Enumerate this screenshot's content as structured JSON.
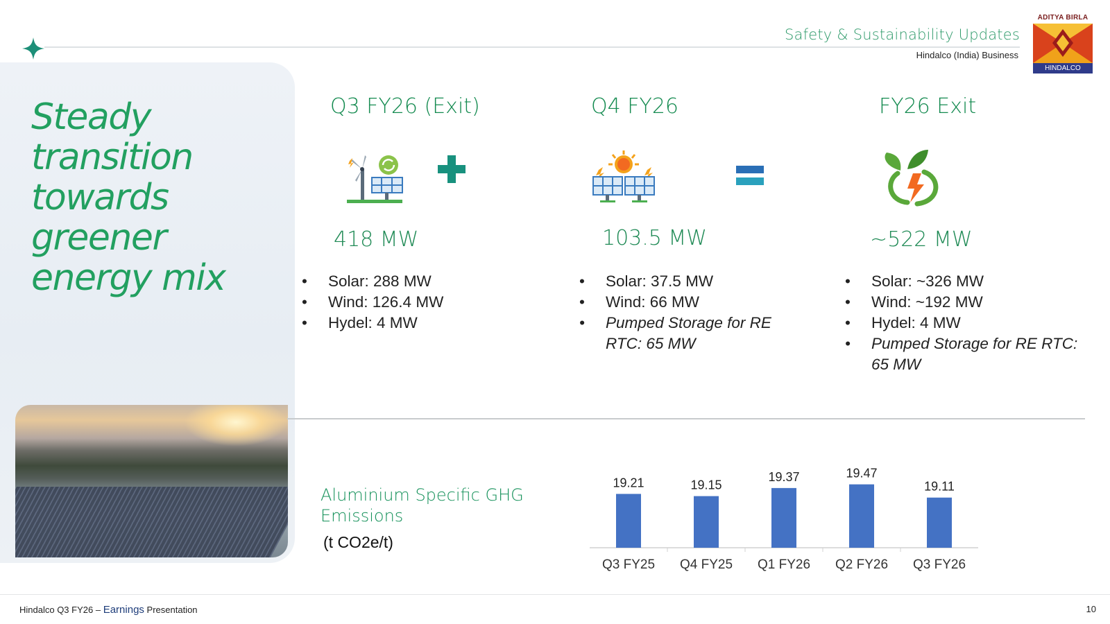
{
  "header": {
    "title": "Safety & Sustainability Updates",
    "subtitle": "Hindalco (India) Business"
  },
  "logo": {
    "top_text": "ADITYA BIRLA",
    "bottom_text": "HINDALCO"
  },
  "headline": "Steady transition towards greener energy mix",
  "columns": [
    {
      "title": "Q3 FY26 (Exit)",
      "icon": "wind-solar-icon",
      "mw": "418 MW",
      "bullets": [
        {
          "text": "Solar: 288 MW",
          "italic": false
        },
        {
          "text": "Wind: 126.4 MW",
          "italic": false
        },
        {
          "text": "Hydel: 4 MW",
          "italic": false
        }
      ]
    },
    {
      "title": "Q4 FY26",
      "icon": "sun-solar-panels-icon",
      "mw": "103.5 MW",
      "bullets": [
        {
          "text": "Solar: 37.5 MW",
          "italic": false
        },
        {
          "text": "Wind: 66 MW",
          "italic": false
        },
        {
          "text": "Pumped Storage for RE RTC: 65 MW",
          "italic": true
        }
      ]
    },
    {
      "title": "FY26 Exit",
      "icon": "green-energy-icon",
      "mw": "~522 MW",
      "bullets": [
        {
          "text": "Solar: ~326 MW",
          "italic": false
        },
        {
          "text": "Wind: ~192 MW",
          "italic": false
        },
        {
          "text": "Hydel: 4 MW",
          "italic": false
        },
        {
          "text": "Pumped Storage for RE RTC: 65 MW",
          "italic": true
        }
      ]
    }
  ],
  "operators": {
    "plus": "plus-icon",
    "equals": "equals-icon"
  },
  "ghg": {
    "title": "Aluminium Specific GHG Emissions",
    "unit": "(t CO2e/t)"
  },
  "chart_data": {
    "type": "bar",
    "categories": [
      "Q3 FY25",
      "Q4 FY25",
      "Q1 FY26",
      "Q2 FY26",
      "Q3 FY26"
    ],
    "values": [
      19.21,
      19.15,
      19.37,
      19.47,
      19.11
    ],
    "bar_color": "#4472c4",
    "data_labels": true,
    "grid": false
  },
  "footer": {
    "prefix": "Hindalco Q3 FY26 –",
    "emph": "Earnings",
    "suffix": "Presentation",
    "page": "10"
  },
  "colors": {
    "accent_green": "#1f8a55",
    "bar_blue": "#4472c4",
    "logo_navy": "#2f3b8a"
  }
}
